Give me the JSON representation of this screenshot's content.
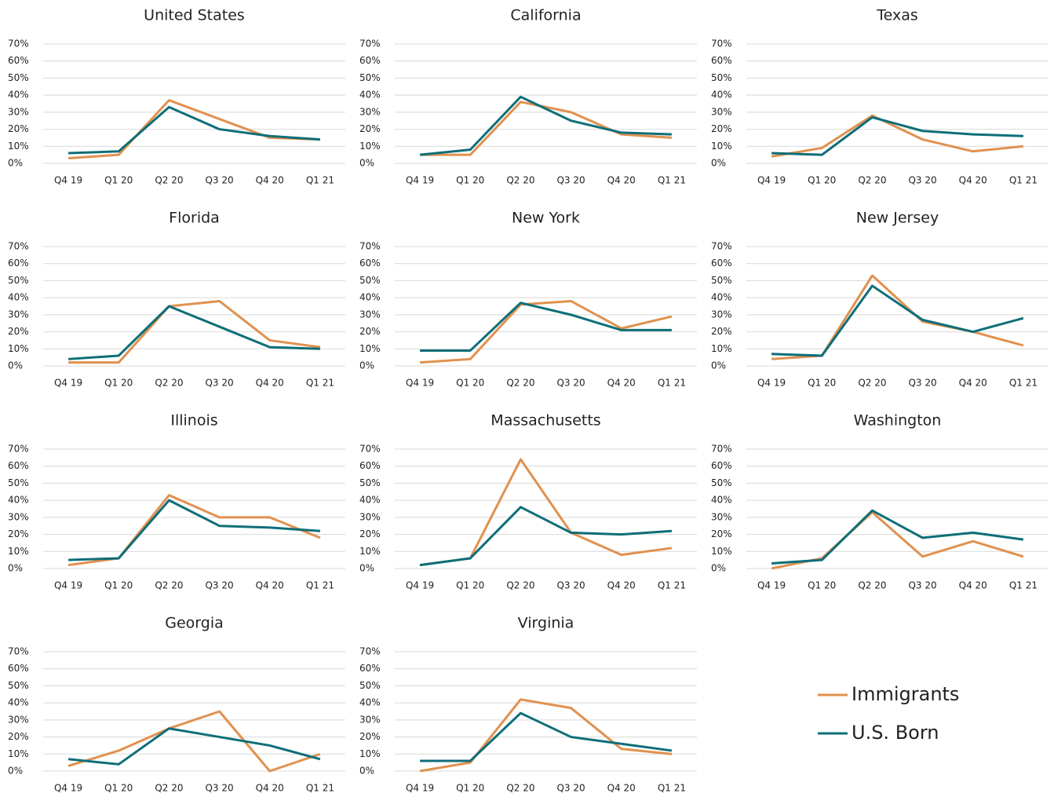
{
  "legend": {
    "entries": [
      {
        "name": "Immigrants",
        "color": "#e0914f"
      },
      {
        "name": "U.S. Born",
        "color": "#0e6e78"
      }
    ]
  },
  "chart_data": [
    {
      "type": "line",
      "title": "United States",
      "categories": [
        "Q4 19",
        "Q1 20",
        "Q2 20",
        "Q3 20",
        "Q4 20",
        "Q1 21"
      ],
      "series": [
        {
          "values": [
            3,
            5,
            37,
            26,
            15,
            14
          ]
        },
        {
          "values": [
            6,
            7,
            33,
            20,
            16,
            14
          ]
        }
      ],
      "ylim": [
        0,
        70
      ],
      "yticks": [
        {
          "value": 0,
          "label": "0%"
        },
        {
          "value": 10,
          "label": "10%"
        },
        {
          "value": 20,
          "label": "20%"
        },
        {
          "value": 30,
          "label": "30%"
        },
        {
          "value": 40,
          "label": "40%"
        },
        {
          "value": 50,
          "label": "50%"
        },
        {
          "value": 60,
          "label": "60%"
        },
        {
          "value": 70,
          "label": "70%"
        }
      ],
      "grid": true
    },
    {
      "type": "line",
      "title": "California",
      "categories": [
        "Q4 19",
        "Q1 20",
        "Q2 20",
        "Q3 20",
        "Q4 20",
        "Q1 21"
      ],
      "series": [
        {
          "values": [
            5,
            5,
            36,
            30,
            17,
            15
          ]
        },
        {
          "values": [
            5,
            8,
            39,
            25,
            18,
            17
          ]
        }
      ],
      "ylim": [
        0,
        70
      ],
      "yticks": [
        {
          "value": 0,
          "label": "0%"
        },
        {
          "value": 10,
          "label": "10%"
        },
        {
          "value": 20,
          "label": "20%"
        },
        {
          "value": 30,
          "label": "30%"
        },
        {
          "value": 40,
          "label": "40%"
        },
        {
          "value": 50,
          "label": "50%"
        },
        {
          "value": 60,
          "label": "60%"
        },
        {
          "value": 70,
          "label": "70%"
        }
      ],
      "grid": true
    },
    {
      "type": "line",
      "title": "Texas",
      "categories": [
        "Q4 19",
        "Q1 20",
        "Q2 20",
        "Q3 20",
        "Q4 20",
        "Q1 21"
      ],
      "series": [
        {
          "values": [
            4,
            9,
            28,
            14,
            7,
            10
          ]
        },
        {
          "values": [
            6,
            5,
            27,
            19,
            17,
            16
          ]
        }
      ],
      "ylim": [
        0,
        70
      ],
      "yticks": [
        {
          "value": 0,
          "label": "0%"
        },
        {
          "value": 10,
          "label": "10%"
        },
        {
          "value": 20,
          "label": "20%"
        },
        {
          "value": 30,
          "label": "30%"
        },
        {
          "value": 40,
          "label": "40%"
        },
        {
          "value": 50,
          "label": "50%"
        },
        {
          "value": 60,
          "label": "60%"
        },
        {
          "value": 70,
          "label": "70%"
        }
      ],
      "grid": true
    },
    {
      "type": "line",
      "title": "Florida",
      "categories": [
        "Q4 19",
        "Q1 20",
        "Q2 20",
        "Q3 20",
        "Q4 20",
        "Q1 21"
      ],
      "series": [
        {
          "values": [
            2,
            2,
            35,
            38,
            15,
            11
          ]
        },
        {
          "values": [
            4,
            6,
            35,
            23,
            11,
            10
          ]
        }
      ],
      "ylim": [
        0,
        70
      ],
      "yticks": [
        {
          "value": 0,
          "label": "0%"
        },
        {
          "value": 10,
          "label": "10%"
        },
        {
          "value": 20,
          "label": "20%"
        },
        {
          "value": 30,
          "label": "30%"
        },
        {
          "value": 40,
          "label": "40%"
        },
        {
          "value": 50,
          "label": "50%"
        },
        {
          "value": 60,
          "label": "60%"
        },
        {
          "value": 70,
          "label": "70%"
        }
      ],
      "grid": true
    },
    {
      "type": "line",
      "title": "New York",
      "categories": [
        "Q4 19",
        "Q1 20",
        "Q2 20",
        "Q3 20",
        "Q4 20",
        "Q1 21"
      ],
      "series": [
        {
          "values": [
            2,
            4,
            36,
            38,
            22,
            29
          ]
        },
        {
          "values": [
            9,
            9,
            37,
            30,
            21,
            21
          ]
        }
      ],
      "ylim": [
        0,
        70
      ],
      "yticks": [
        {
          "value": 0,
          "label": "0%"
        },
        {
          "value": 10,
          "label": "10%"
        },
        {
          "value": 20,
          "label": "20%"
        },
        {
          "value": 30,
          "label": "30%"
        },
        {
          "value": 40,
          "label": "40%"
        },
        {
          "value": 50,
          "label": "50%"
        },
        {
          "value": 60,
          "label": "60%"
        },
        {
          "value": 70,
          "label": "70%"
        }
      ],
      "grid": true
    },
    {
      "type": "line",
      "title": "New Jersey",
      "categories": [
        "Q4 19",
        "Q1 20",
        "Q2 20",
        "Q3 20",
        "Q4 20",
        "Q1 21"
      ],
      "series": [
        {
          "values": [
            4,
            6,
            53,
            26,
            20,
            12
          ]
        },
        {
          "values": [
            7,
            6,
            47,
            27,
            20,
            28
          ]
        }
      ],
      "ylim": [
        0,
        70
      ],
      "yticks": [
        {
          "value": 0,
          "label": "0%"
        },
        {
          "value": 10,
          "label": "10%"
        },
        {
          "value": 20,
          "label": "20%"
        },
        {
          "value": 30,
          "label": "30%"
        },
        {
          "value": 40,
          "label": "40%"
        },
        {
          "value": 50,
          "label": "50%"
        },
        {
          "value": 60,
          "label": "60%"
        },
        {
          "value": 70,
          "label": "70%"
        }
      ],
      "grid": true
    },
    {
      "type": "line",
      "title": "Illinois",
      "categories": [
        "Q4 19",
        "Q1 20",
        "Q2 20",
        "Q3 20",
        "Q4 20",
        "Q1 21"
      ],
      "series": [
        {
          "values": [
            2,
            6,
            43,
            30,
            30,
            18
          ]
        },
        {
          "values": [
            5,
            6,
            40,
            25,
            24,
            22
          ]
        }
      ],
      "ylim": [
        0,
        70
      ],
      "yticks": [
        {
          "value": 0,
          "label": "0%"
        },
        {
          "value": 10,
          "label": "10%"
        },
        {
          "value": 20,
          "label": "20%"
        },
        {
          "value": 30,
          "label": "30%"
        },
        {
          "value": 40,
          "label": "40%"
        },
        {
          "value": 50,
          "label": "50%"
        },
        {
          "value": 60,
          "label": "60%"
        },
        {
          "value": 70,
          "label": "70%"
        }
      ],
      "grid": true
    },
    {
      "type": "line",
      "title": "Massachusetts",
      "categories": [
        "Q4 19",
        "Q1 20",
        "Q2 20",
        "Q3 20",
        "Q4 20",
        "Q1 21"
      ],
      "series": [
        {
          "values": [
            2,
            6,
            64,
            21,
            8,
            12
          ]
        },
        {
          "values": [
            2,
            6,
            36,
            21,
            20,
            22
          ]
        }
      ],
      "ylim": [
        0,
        70
      ],
      "yticks": [
        {
          "value": 0,
          "label": "0%"
        },
        {
          "value": 10,
          "label": "10%"
        },
        {
          "value": 20,
          "label": "20%"
        },
        {
          "value": 30,
          "label": "30%"
        },
        {
          "value": 40,
          "label": "40%"
        },
        {
          "value": 50,
          "label": "50%"
        },
        {
          "value": 60,
          "label": "60%"
        },
        {
          "value": 70,
          "label": "70%"
        }
      ],
      "grid": true
    },
    {
      "type": "line",
      "title": "Washington",
      "categories": [
        "Q4 19",
        "Q1 20",
        "Q2 20",
        "Q3 20",
        "Q4 20",
        "Q1 21"
      ],
      "series": [
        {
          "values": [
            0,
            6,
            33,
            7,
            16,
            7
          ]
        },
        {
          "values": [
            3,
            5,
            34,
            18,
            21,
            17
          ]
        }
      ],
      "ylim": [
        0,
        70
      ],
      "yticks": [
        {
          "value": 0,
          "label": "0%"
        },
        {
          "value": 10,
          "label": "10%"
        },
        {
          "value": 20,
          "label": "20%"
        },
        {
          "value": 30,
          "label": "30%"
        },
        {
          "value": 40,
          "label": "40%"
        },
        {
          "value": 50,
          "label": "50%"
        },
        {
          "value": 60,
          "label": "60%"
        },
        {
          "value": 70,
          "label": "70%"
        }
      ],
      "grid": true
    },
    {
      "type": "line",
      "title": "Georgia",
      "categories": [
        "Q4 19",
        "Q1 20",
        "Q2 20",
        "Q3 20",
        "Q4 20",
        "Q1 21"
      ],
      "series": [
        {
          "values": [
            3,
            12,
            25,
            35,
            0,
            10
          ]
        },
        {
          "values": [
            7,
            4,
            25,
            20,
            15,
            7
          ]
        }
      ],
      "ylim": [
        0,
        70
      ],
      "yticks": [
        {
          "value": 0,
          "label": "0%"
        },
        {
          "value": 10,
          "label": "10%"
        },
        {
          "value": 20,
          "label": "20%"
        },
        {
          "value": 30,
          "label": "30%"
        },
        {
          "value": 40,
          "label": "40%"
        },
        {
          "value": 50,
          "label": "50%"
        },
        {
          "value": 60,
          "label": "60%"
        },
        {
          "value": 70,
          "label": "70%"
        }
      ],
      "grid": true
    },
    {
      "type": "line",
      "title": "Virginia",
      "categories": [
        "Q4 19",
        "Q1 20",
        "Q2 20",
        "Q3 20",
        "Q4 20",
        "Q1 21"
      ],
      "series": [
        {
          "values": [
            0,
            5,
            42,
            37,
            13,
            10
          ]
        },
        {
          "values": [
            6,
            6,
            34,
            20,
            16,
            12
          ]
        }
      ],
      "ylim": [
        0,
        70
      ],
      "yticks": [
        {
          "value": 0,
          "label": "0%"
        },
        {
          "value": 10,
          "label": "10%"
        },
        {
          "value": 20,
          "label": "20%"
        },
        {
          "value": 30,
          "label": "30%"
        },
        {
          "value": 40,
          "label": "40%"
        },
        {
          "value": 50,
          "label": "50%"
        },
        {
          "value": 60,
          "label": "60%"
        },
        {
          "value": 70,
          "label": "70%"
        }
      ],
      "grid": true
    }
  ]
}
